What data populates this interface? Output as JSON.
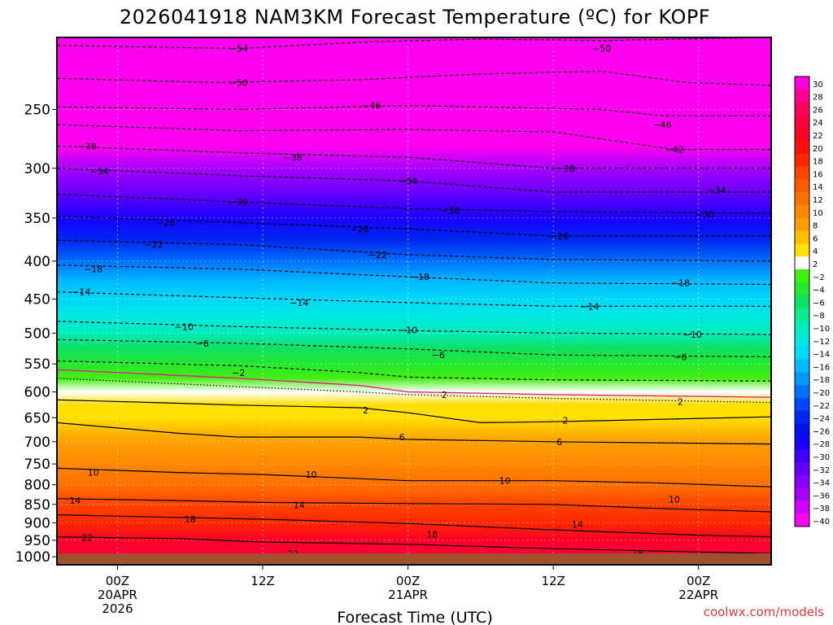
{
  "chart_data": {
    "type": "heatmap",
    "title": "2026041918 NAM3KM Forecast Temperature (ºC) for KOPF",
    "xlabel": "Forecast Time (UTC)",
    "ylabel": "",
    "credit": "coolwx.com/models",
    "x_range_hours": [
      -5,
      54
    ],
    "y_range_hpa": [
      200,
      1025
    ],
    "y_ticks": [
      {
        "value": 250,
        "label": "250"
      },
      {
        "value": 300,
        "label": "300"
      },
      {
        "value": 350,
        "label": "350"
      },
      {
        "value": 400,
        "label": "400"
      },
      {
        "value": 450,
        "label": "450"
      },
      {
        "value": 500,
        "label": "500"
      },
      {
        "value": 550,
        "label": "550"
      },
      {
        "value": 600,
        "label": "600"
      },
      {
        "value": 650,
        "label": "650"
      },
      {
        "value": 700,
        "label": "700"
      },
      {
        "value": 750,
        "label": "750"
      },
      {
        "value": 800,
        "label": "800"
      },
      {
        "value": 850,
        "label": "850"
      },
      {
        "value": 900,
        "label": "900"
      },
      {
        "value": 950,
        "label": "950"
      },
      {
        "value": 1000,
        "label": "1000"
      }
    ],
    "x_ticks": [
      {
        "hour": 0,
        "lines": [
          "00Z",
          "20APR",
          "2026"
        ]
      },
      {
        "hour": 12,
        "lines": [
          "12Z"
        ]
      },
      {
        "hour": 24,
        "lines": [
          "00Z",
          "21APR"
        ]
      },
      {
        "hour": 36,
        "lines": [
          "12Z"
        ]
      },
      {
        "hour": 48,
        "lines": [
          "00Z",
          "22APR"
        ]
      }
    ],
    "colorbar": {
      "labels": [
        "30",
        "28",
        "26",
        "24",
        "22",
        "20",
        "18",
        "16",
        "14",
        "12",
        "10",
        "8",
        "6",
        "4",
        "2",
        "−2",
        "−4",
        "−6",
        "−8",
        "−10",
        "−12",
        "−14",
        "−16",
        "−18",
        "−20",
        "−22",
        "−24",
        "−26",
        "−28",
        "−30",
        "−32",
        "−34",
        "−36",
        "−38",
        "−40"
      ],
      "colors": [
        "#ff00dd",
        "#ff0090",
        "#ff0060",
        "#ff0040",
        "#ff0028",
        "#ff1010",
        "#ff2800",
        "#ff4400",
        "#ff5c00",
        "#ff7000",
        "#ff8800",
        "#ffa000",
        "#ffbc00",
        "#ffe000",
        "#ffffff",
        "#44ee10",
        "#22e830",
        "#10e060",
        "#10e890",
        "#00ecbc",
        "#00e8e0",
        "#00d8f8",
        "#00b8ff",
        "#0098ff",
        "#0070ff",
        "#0048ff",
        "#0028f0",
        "#0010e8",
        "#1800ff",
        "#4000ff",
        "#6400ff",
        "#8800ff",
        "#a800ff",
        "#cc00ff",
        "#ff00f0"
      ]
    },
    "temperature_profile": [
      {
        "p": 200,
        "t": -54
      },
      {
        "p": 230,
        "t": -50
      },
      {
        "p": 250,
        "t": -46
      },
      {
        "p": 280,
        "t": -40
      },
      {
        "p": 300,
        "t": -36
      },
      {
        "p": 325,
        "t": -32
      },
      {
        "p": 350,
        "t": -28
      },
      {
        "p": 375,
        "t": -24
      },
      {
        "p": 400,
        "t": -20
      },
      {
        "p": 425,
        "t": -17
      },
      {
        "p": 450,
        "t": -14
      },
      {
        "p": 475,
        "t": -12
      },
      {
        "p": 500,
        "t": -10
      },
      {
        "p": 525,
        "t": -7
      },
      {
        "p": 550,
        "t": -4
      },
      {
        "p": 575,
        "t": -1
      },
      {
        "p": 600,
        "t": 1
      },
      {
        "p": 625,
        "t": 3
      },
      {
        "p": 650,
        "t": 4.5
      },
      {
        "p": 675,
        "t": 6
      },
      {
        "p": 700,
        "t": 7
      },
      {
        "p": 750,
        "t": 9
      },
      {
        "p": 800,
        "t": 12
      },
      {
        "p": 850,
        "t": 15
      },
      {
        "p": 900,
        "t": 18
      },
      {
        "p": 950,
        "t": 21
      },
      {
        "p": 1000,
        "t": 24
      },
      {
        "p": 1025,
        "t": 25
      }
    ],
    "contours": [
      {
        "level": -54,
        "style": "dashed",
        "points": [
          [
            -5,
            205
          ],
          [
            10,
            207
          ],
          [
            20,
            203
          ],
          [
            30,
            201
          ],
          [
            40,
            202
          ],
          [
            54,
            200
          ]
        ]
      },
      {
        "level": -50,
        "style": "dashed",
        "points": [
          [
            -5,
            227
          ],
          [
            8,
            230
          ],
          [
            20,
            228
          ],
          [
            30,
            224
          ],
          [
            40,
            222
          ],
          [
            47,
            230
          ],
          [
            54,
            232
          ]
        ]
      },
      {
        "level": -46,
        "style": "dashed",
        "points": [
          [
            -5,
            248
          ],
          [
            10,
            250
          ],
          [
            24,
            247
          ],
          [
            30,
            248
          ],
          [
            40,
            250
          ],
          [
            45,
            255
          ],
          [
            54,
            255
          ]
        ]
      },
      {
        "level": -42,
        "style": "dashed",
        "points": [
          [
            -5,
            262
          ],
          [
            10,
            267
          ],
          [
            24,
            266
          ],
          [
            36,
            268
          ],
          [
            46,
            283
          ],
          [
            54,
            283
          ]
        ]
      },
      {
        "level": -38,
        "style": "dashed",
        "points": [
          [
            -5,
            280
          ],
          [
            10,
            286
          ],
          [
            24,
            290
          ],
          [
            36,
            300
          ],
          [
            54,
            300
          ]
        ]
      },
      {
        "level": -34,
        "style": "dashed",
        "points": [
          [
            -5,
            300
          ],
          [
            10,
            307
          ],
          [
            24,
            312
          ],
          [
            36,
            323
          ],
          [
            54,
            323
          ]
        ]
      },
      {
        "level": -30,
        "style": "dashed",
        "points": [
          [
            -5,
            325
          ],
          [
            10,
            333
          ],
          [
            24,
            340
          ],
          [
            36,
            343
          ],
          [
            54,
            345
          ]
        ]
      },
      {
        "level": -26,
        "style": "dashed",
        "points": [
          [
            -5,
            348
          ],
          [
            10,
            355
          ],
          [
            24,
            362
          ],
          [
            36,
            370
          ],
          [
            54,
            370
          ]
        ]
      },
      {
        "level": -22,
        "style": "dashed",
        "points": [
          [
            -5,
            375
          ],
          [
            10,
            380
          ],
          [
            24,
            392
          ],
          [
            36,
            398
          ],
          [
            54,
            400
          ]
        ]
      },
      {
        "level": -18,
        "style": "dashed",
        "points": [
          [
            -5,
            405
          ],
          [
            10,
            410
          ],
          [
            24,
            420
          ],
          [
            36,
            428
          ],
          [
            54,
            430
          ]
        ]
      },
      {
        "level": -14,
        "style": "dashed",
        "points": [
          [
            -5,
            440
          ],
          [
            10,
            448
          ],
          [
            24,
            455
          ],
          [
            36,
            460
          ],
          [
            54,
            460
          ]
        ]
      },
      {
        "level": -10,
        "style": "dashed",
        "points": [
          [
            -5,
            482
          ],
          [
            10,
            490
          ],
          [
            24,
            496
          ],
          [
            36,
            500
          ],
          [
            54,
            502
          ]
        ]
      },
      {
        "level": -6,
        "style": "dashed",
        "points": [
          [
            -5,
            510
          ],
          [
            10,
            516
          ],
          [
            24,
            525
          ],
          [
            36,
            535
          ],
          [
            54,
            538
          ]
        ]
      },
      {
        "level": -2,
        "style": "dashed",
        "points": [
          [
            -5,
            545
          ],
          [
            10,
            553
          ],
          [
            20,
            565
          ],
          [
            24,
            573
          ],
          [
            36,
            578
          ],
          [
            54,
            580
          ]
        ]
      },
      {
        "level": 0,
        "style": "magenta",
        "points": [
          [
            -5,
            560
          ],
          [
            10,
            575
          ],
          [
            20,
            588
          ],
          [
            24,
            600
          ],
          [
            36,
            605
          ],
          [
            54,
            610
          ]
        ]
      },
      {
        "level": 2,
        "style": "dotted",
        "points": [
          [
            -5,
            575
          ],
          [
            10,
            590
          ],
          [
            20,
            600
          ],
          [
            24,
            605
          ],
          [
            36,
            612
          ],
          [
            54,
            620
          ]
        ]
      },
      {
        "level": 2,
        "style": "solid",
        "points": [
          [
            -5,
            615
          ],
          [
            3,
            620
          ],
          [
            10,
            625
          ],
          [
            20,
            630
          ],
          [
            24,
            640
          ],
          [
            30,
            660
          ],
          [
            36,
            658
          ],
          [
            54,
            648
          ]
        ]
      },
      {
        "level": 6,
        "style": "solid",
        "points": [
          [
            -5,
            660
          ],
          [
            5,
            682
          ],
          [
            10,
            690
          ],
          [
            20,
            690
          ],
          [
            24,
            695
          ],
          [
            36,
            700
          ],
          [
            54,
            705
          ]
        ]
      },
      {
        "level": 10,
        "style": "solid",
        "points": [
          [
            -5,
            760
          ],
          [
            5,
            770
          ],
          [
            12,
            775
          ],
          [
            24,
            790
          ],
          [
            36,
            790
          ],
          [
            44,
            795
          ],
          [
            54,
            805
          ]
        ]
      },
      {
        "level": 14,
        "style": "solid",
        "points": [
          [
            -5,
            835
          ],
          [
            5,
            840
          ],
          [
            12,
            845
          ],
          [
            24,
            848
          ],
          [
            36,
            850
          ],
          [
            44,
            860
          ],
          [
            54,
            870
          ]
        ]
      },
      {
        "level": 18,
        "style": "solid",
        "points": [
          [
            -5,
            878
          ],
          [
            5,
            885
          ],
          [
            12,
            890
          ],
          [
            24,
            902
          ],
          [
            36,
            920
          ],
          [
            48,
            935
          ],
          [
            54,
            940
          ]
        ]
      },
      {
        "level": 22,
        "style": "solid",
        "points": [
          [
            -5,
            940
          ],
          [
            5,
            945
          ],
          [
            12,
            955
          ],
          [
            24,
            962
          ],
          [
            36,
            975
          ],
          [
            48,
            985
          ],
          [
            54,
            990
          ]
        ]
      }
    ],
    "contour_labels": [
      {
        "text": "−54",
        "hour": 10,
        "p": 207
      },
      {
        "text": "−50",
        "hour": 40,
        "p": 207
      },
      {
        "text": "−50",
        "hour": 10,
        "p": 230
      },
      {
        "text": "−46",
        "hour": 21,
        "p": 247
      },
      {
        "text": "−46",
        "hour": 45,
        "p": 262
      },
      {
        "text": "−42",
        "hour": 46,
        "p": 283
      },
      {
        "text": "−38",
        "hour": -2.5,
        "p": 280
      },
      {
        "text": "−38",
        "hour": 14.5,
        "p": 290
      },
      {
        "text": "−38",
        "hour": 37,
        "p": 300
      },
      {
        "text": "−34",
        "hour": -1.5,
        "p": 303
      },
      {
        "text": "−34",
        "hour": 24,
        "p": 312
      },
      {
        "text": "−34",
        "hour": 49.5,
        "p": 321
      },
      {
        "text": "−30",
        "hour": 10,
        "p": 333
      },
      {
        "text": "−30",
        "hour": 27.5,
        "p": 342
      },
      {
        "text": "−30",
        "hour": 48.5,
        "p": 346
      },
      {
        "text": "−26",
        "hour": 4,
        "p": 355
      },
      {
        "text": "−26",
        "hour": 20,
        "p": 362
      },
      {
        "text": "−26",
        "hour": 36.5,
        "p": 370
      },
      {
        "text": "−22",
        "hour": 3,
        "p": 380
      },
      {
        "text": "−22",
        "hour": 21.5,
        "p": 392
      },
      {
        "text": "−18",
        "hour": -2,
        "p": 410
      },
      {
        "text": "−18",
        "hour": 25,
        "p": 420
      },
      {
        "text": "−18",
        "hour": 46.5,
        "p": 428
      },
      {
        "text": "−14",
        "hour": -3,
        "p": 440
      },
      {
        "text": "−14",
        "hour": 15,
        "p": 455
      },
      {
        "text": "−14",
        "hour": 39,
        "p": 460
      },
      {
        "text": "−10",
        "hour": 5.5,
        "p": 490
      },
      {
        "text": "−10",
        "hour": 24,
        "p": 495
      },
      {
        "text": "−10",
        "hour": 47.5,
        "p": 502
      },
      {
        "text": "−6",
        "hour": 7,
        "p": 516
      },
      {
        "text": "−6",
        "hour": 26.5,
        "p": 535
      },
      {
        "text": "−6",
        "hour": 46.5,
        "p": 538
      },
      {
        "text": "−2",
        "hour": 10,
        "p": 565
      },
      {
        "text": "2",
        "hour": 27,
        "p": 605
      },
      {
        "text": "2",
        "hour": 46.5,
        "p": 618
      },
      {
        "text": "2",
        "hour": 20.5,
        "p": 635
      },
      {
        "text": "2",
        "hour": 37,
        "p": 655
      },
      {
        "text": "6",
        "hour": 23.5,
        "p": 690
      },
      {
        "text": "6",
        "hour": 36.5,
        "p": 700
      },
      {
        "text": "10",
        "hour": -2,
        "p": 770
      },
      {
        "text": "10",
        "hour": 16,
        "p": 775
      },
      {
        "text": "10",
        "hour": 32,
        "p": 790
      },
      {
        "text": "10",
        "hour": 46,
        "p": 837
      },
      {
        "text": "14",
        "hour": -3.5,
        "p": 840
      },
      {
        "text": "14",
        "hour": 15,
        "p": 852
      },
      {
        "text": "14",
        "hour": 38,
        "p": 905
      },
      {
        "text": "18",
        "hour": 6,
        "p": 890
      },
      {
        "text": "18",
        "hour": 26,
        "p": 932
      },
      {
        "text": "18",
        "hour": 43,
        "p": 990
      },
      {
        "text": "22",
        "hour": -2.5,
        "p": 942
      },
      {
        "text": "22",
        "hour": 14.5,
        "p": 990
      }
    ]
  }
}
